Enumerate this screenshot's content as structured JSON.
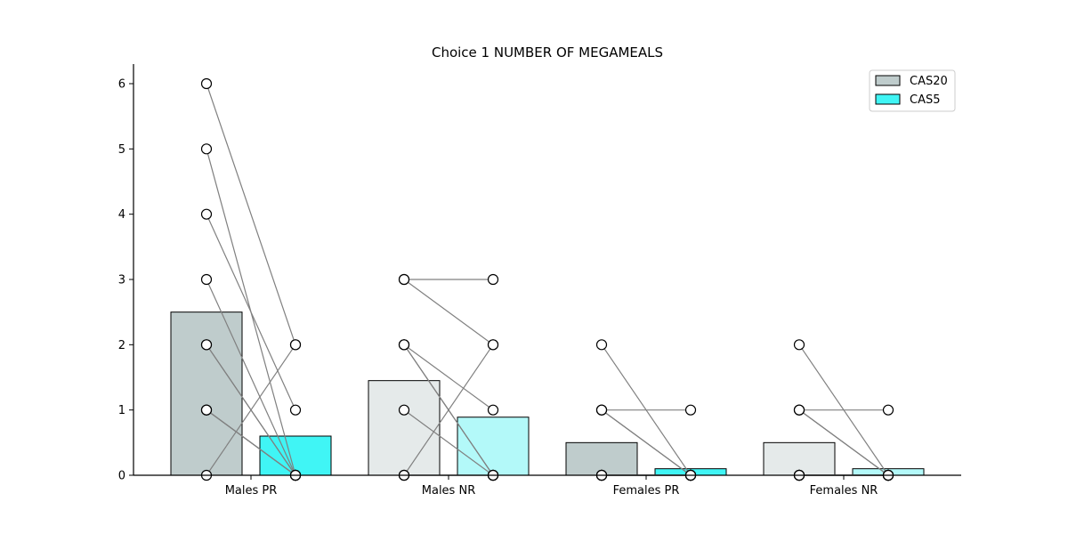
{
  "chart_data": {
    "type": "bar",
    "title": "Choice 1 NUMBER OF MEGAMEALS",
    "xlabel": "",
    "ylabel": "",
    "categories": [
      "Males PR",
      "Males NR",
      "Females PR",
      "Females NR"
    ],
    "ylim": [
      0,
      6.3
    ],
    "yticks": [
      0,
      1,
      2,
      3,
      4,
      5,
      6
    ],
    "legend_position": "top-right",
    "series": [
      {
        "name": "CAS20",
        "color": "#bfcccc",
        "light_color": "#e5eaea",
        "values": [
          2.5,
          1.45,
          0.5,
          0.5
        ]
      },
      {
        "name": "CAS5",
        "color": "#40f5f5",
        "light_color": "#b3f9f9",
        "values": [
          0.6,
          0.89,
          0.1,
          0.1
        ]
      }
    ],
    "paired_points": [
      {
        "category": "Males PR",
        "pairs": [
          [
            6,
            2
          ],
          [
            5,
            0
          ],
          [
            4,
            1
          ],
          [
            3,
            0
          ],
          [
            2,
            0
          ],
          [
            1,
            0
          ],
          [
            0,
            2
          ],
          [
            1,
            0
          ],
          [
            2,
            0
          ],
          [
            1,
            0
          ]
        ]
      },
      {
        "category": "Males NR",
        "pairs": [
          [
            3,
            3
          ],
          [
            3,
            2
          ],
          [
            2,
            1
          ],
          [
            2,
            0
          ],
          [
            2,
            0
          ],
          [
            1,
            0
          ],
          [
            0,
            2
          ],
          [
            0,
            0
          ],
          [
            0,
            0
          ]
        ]
      },
      {
        "category": "Females PR",
        "pairs": [
          [
            2,
            0
          ],
          [
            1,
            1
          ],
          [
            1,
            0
          ],
          [
            1,
            0
          ],
          [
            0,
            0
          ],
          [
            0,
            0
          ],
          [
            0,
            0
          ],
          [
            0,
            0
          ],
          [
            0,
            0
          ],
          [
            0,
            0
          ]
        ]
      },
      {
        "category": "Females NR",
        "pairs": [
          [
            2,
            0
          ],
          [
            1,
            1
          ],
          [
            1,
            0
          ],
          [
            1,
            0
          ],
          [
            0,
            0
          ],
          [
            0,
            0
          ],
          [
            0,
            0
          ],
          [
            0,
            0
          ],
          [
            0,
            0
          ],
          [
            0,
            0
          ]
        ]
      }
    ]
  }
}
